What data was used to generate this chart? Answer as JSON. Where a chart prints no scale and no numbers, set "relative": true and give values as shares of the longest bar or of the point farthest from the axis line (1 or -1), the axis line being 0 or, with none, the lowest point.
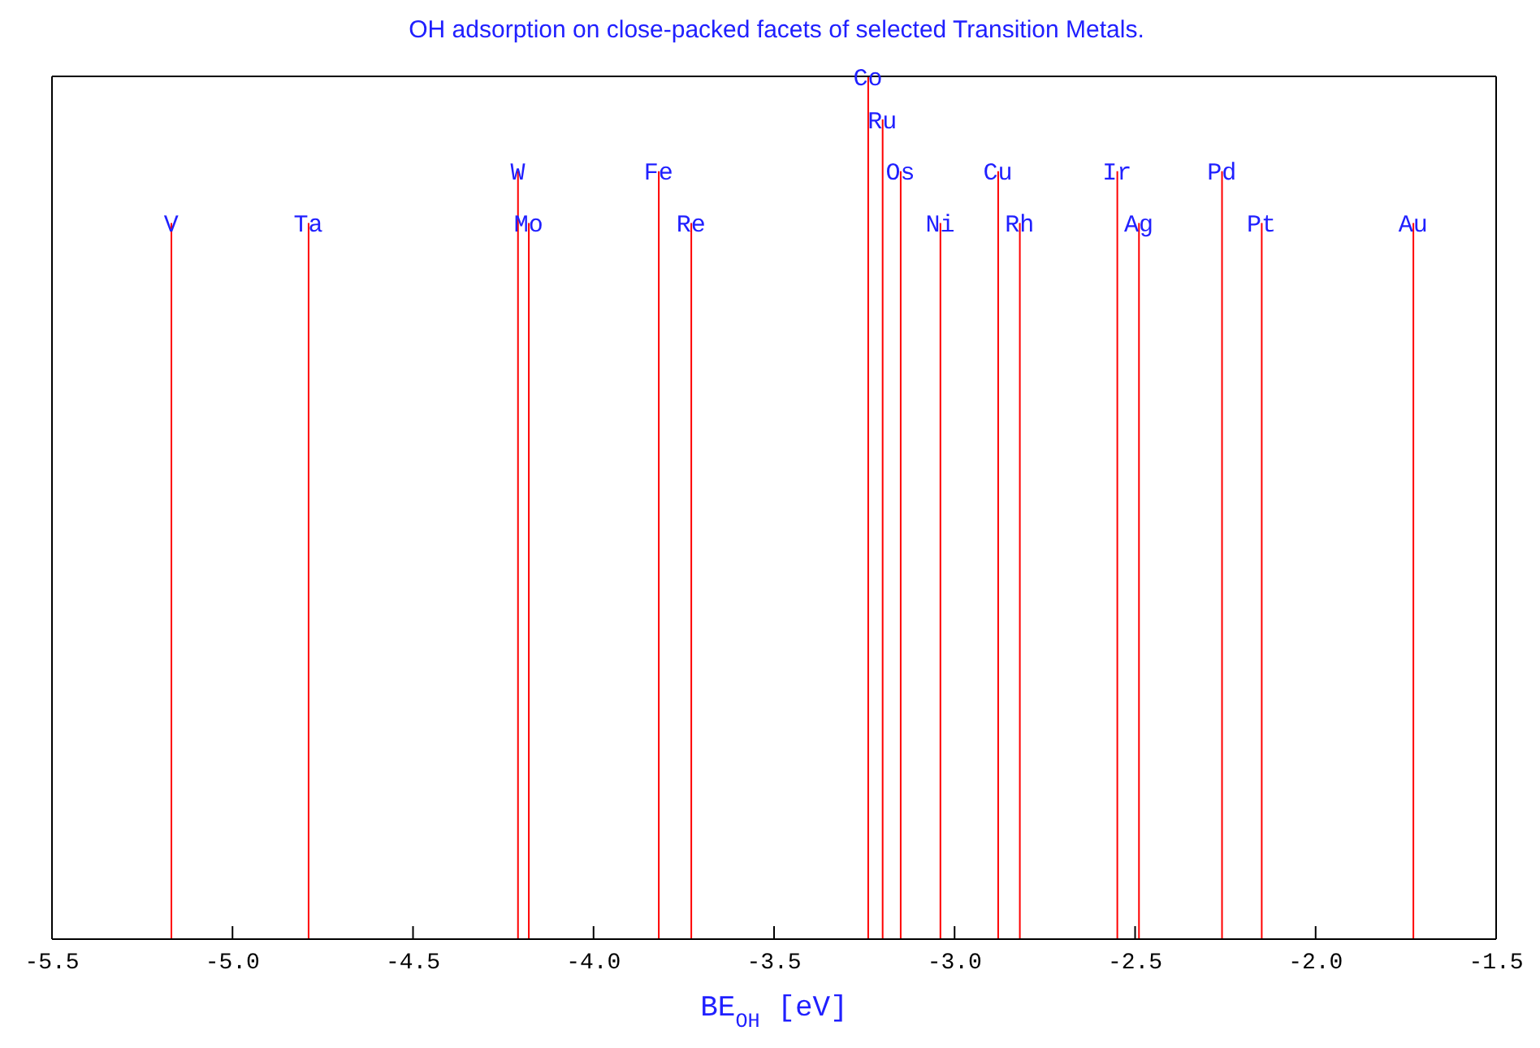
{
  "chart_data": {
    "type": "bar",
    "title": "OH adsorption on close-packed facets of selected Transition Metals.",
    "xlabel": "BE$_{OH}$ [eV]",
    "relative": true,
    "color": "#ff0000",
    "x": [
      -5.17,
      -4.79,
      -4.21,
      -4.18,
      -3.82,
      -3.73,
      -3.24,
      -3.2,
      -3.15,
      -3.04,
      -2.88,
      -2.82,
      -2.55,
      -2.49,
      -2.26,
      -2.15,
      -1.73
    ],
    "values": [
      0.83,
      0.83,
      0.89,
      0.83,
      0.89,
      0.83,
      1,
      0.95,
      0.89,
      0.83,
      0.89,
      0.83,
      0.89,
      0.83,
      0.89,
      0.83,
      0.83
    ],
    "xlim": [
      -5.5,
      -1.5
    ],
    "xticks": [
      -5.5,
      {
        "value": -5,
        "label": "-5.0"
      },
      -4.5,
      {
        "value": -4,
        "label": "-4.0"
      },
      -3.5,
      {
        "value": -3,
        "label": "-3.0"
      },
      -2.5,
      {
        "value": -2,
        "label": "-2.0"
      },
      -1.5
    ],
    "annotations": [
      {
        "text": "V",
        "x": -5.17,
        "y": 0.83
      },
      {
        "text": "Ta",
        "x": -4.79,
        "y": 0.83
      },
      {
        "text": "W",
        "x": -4.21,
        "y": 0.89
      },
      {
        "text": "Mo",
        "x": -4.18,
        "y": 0.83
      },
      {
        "text": "Fe",
        "x": -3.82,
        "y": 0.89
      },
      {
        "text": "Re",
        "x": -3.73,
        "y": 0.83
      },
      {
        "text": "Co",
        "x": -3.24,
        "y": 1
      },
      {
        "text": "Ru",
        "x": -3.2,
        "y": 0.95
      },
      {
        "text": "Os",
        "x": -3.15,
        "y": 0.89
      },
      {
        "text": "Ni",
        "x": -3.04,
        "y": 0.83
      },
      {
        "text": "Cu",
        "x": -2.88,
        "y": 0.89
      },
      {
        "text": "Rh",
        "x": -2.82,
        "y": 0.83
      },
      {
        "text": "Ir",
        "x": -2.55,
        "y": 0.89
      },
      {
        "text": "Ag",
        "x": -2.49,
        "y": 0.83
      },
      {
        "text": "Pd",
        "x": -2.26,
        "y": 0.89
      },
      {
        "text": "Pt",
        "x": -2.15,
        "y": 0.83
      },
      {
        "text": "Au",
        "x": -1.73,
        "y": 0.83
      }
    ]
  }
}
